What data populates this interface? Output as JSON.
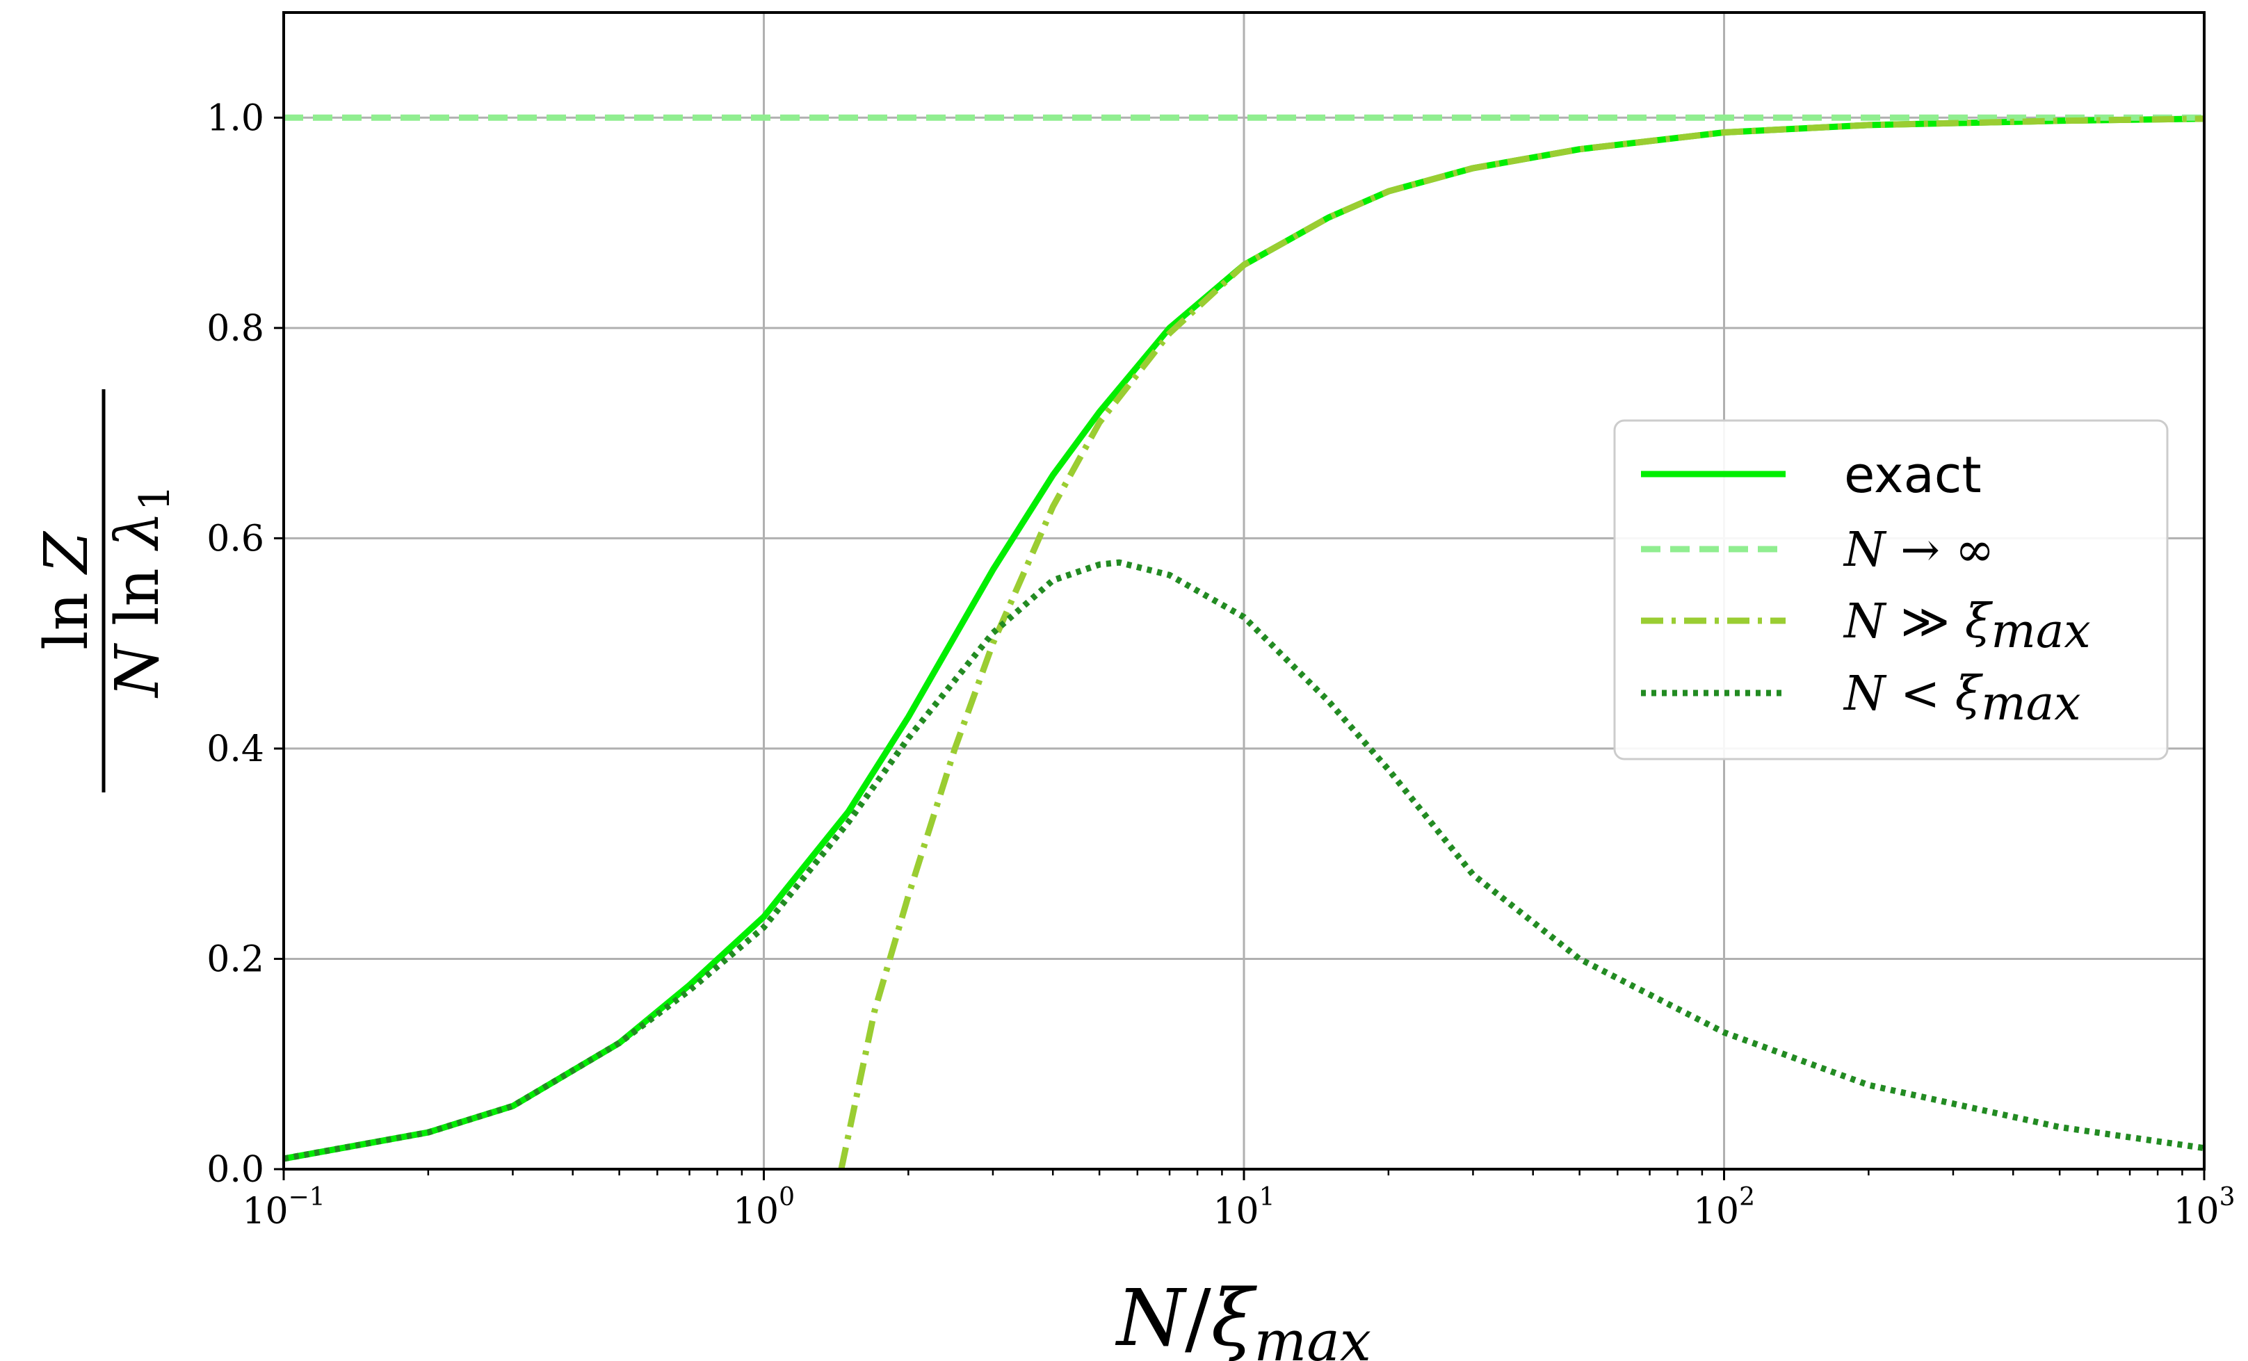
{
  "chart_data": {
    "type": "line",
    "xlabel": "N / ξ_max",
    "ylabel": "ln Z / (N ln λ_1)",
    "xscale": "log",
    "xlim": [
      0.1,
      1000
    ],
    "ylim": [
      0.0,
      1.1
    ],
    "grid": true,
    "legend_position": "right",
    "x_ticks": [
      {
        "base": "10",
        "exp": "−1",
        "value": 0.1
      },
      {
        "base": "10",
        "exp": "0",
        "value": 1
      },
      {
        "base": "10",
        "exp": "1",
        "value": 10
      },
      {
        "base": "10",
        "exp": "2",
        "value": 100
      },
      {
        "base": "10",
        "exp": "3",
        "value": 1000
      }
    ],
    "y_ticks": [
      "0.0",
      "0.2",
      "0.4",
      "0.6",
      "0.8",
      "1.0"
    ],
    "series": [
      {
        "name": "exact",
        "color": "#00ee00",
        "style": "solid",
        "x": [
          0.1,
          0.2,
          0.3,
          0.5,
          0.7,
          1.0,
          1.5,
          2.0,
          3.0,
          4.0,
          5.0,
          7.0,
          10,
          15,
          20,
          30,
          50,
          100,
          200,
          500,
          1000
        ],
        "y": [
          0.01,
          0.035,
          0.06,
          0.12,
          0.175,
          0.24,
          0.34,
          0.43,
          0.57,
          0.66,
          0.72,
          0.8,
          0.86,
          0.905,
          0.93,
          0.952,
          0.97,
          0.986,
          0.993,
          0.997,
          0.999
        ]
      },
      {
        "name": "N → ∞",
        "color": "#90ee90",
        "style": "dashed",
        "x": [
          0.1,
          1000
        ],
        "y": [
          1.0,
          1.0
        ]
      },
      {
        "name": "N ≫ ξ_max",
        "color": "#9acd32",
        "style": "dashdot",
        "x": [
          1.45,
          1.7,
          2.0,
          2.5,
          3.0,
          4.0,
          5.0,
          7.0,
          10,
          15,
          20,
          30,
          50,
          100,
          200,
          500,
          1000
        ],
        "y": [
          0.0,
          0.15,
          0.26,
          0.4,
          0.5,
          0.63,
          0.71,
          0.795,
          0.86,
          0.905,
          0.93,
          0.952,
          0.97,
          0.986,
          0.993,
          0.997,
          0.999
        ]
      },
      {
        "name": "N < ξ_max",
        "color": "#228b22",
        "style": "dotted",
        "x": [
          0.1,
          0.2,
          0.3,
          0.5,
          0.7,
          1.0,
          1.5,
          2.0,
          3.0,
          4.0,
          5.0,
          5.5,
          7.0,
          10,
          15,
          20,
          30,
          50,
          100,
          200,
          500,
          1000
        ],
        "y": [
          0.01,
          0.035,
          0.06,
          0.12,
          0.17,
          0.23,
          0.33,
          0.41,
          0.51,
          0.56,
          0.575,
          0.577,
          0.565,
          0.525,
          0.445,
          0.38,
          0.28,
          0.2,
          0.13,
          0.08,
          0.04,
          0.02
        ]
      }
    ]
  }
}
